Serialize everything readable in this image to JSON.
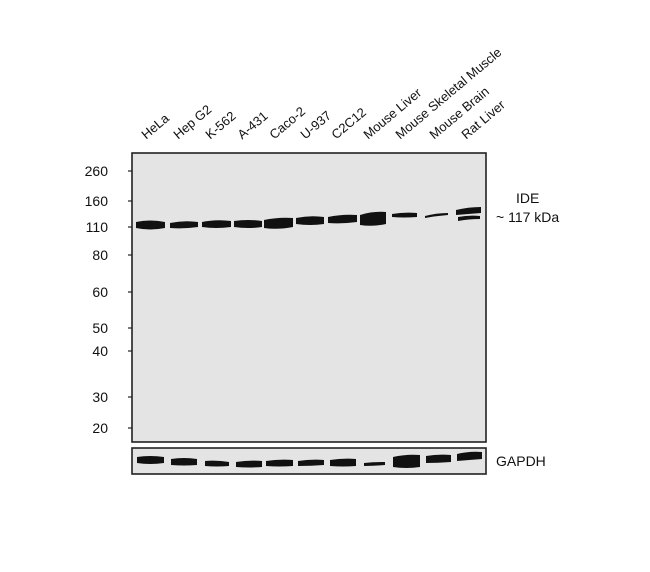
{
  "lanes": [
    "HeLa",
    "Hep G2",
    "K-562",
    "A-431",
    "Caco-2",
    "U-937",
    "C2C12",
    "Mouse Liver",
    "Mouse Skeletal Muscle",
    "Mouse Brain",
    "Rat Liver"
  ],
  "markers": [
    "260",
    "160",
    "110",
    "80",
    "60",
    "50",
    "40",
    "30",
    "20"
  ],
  "target": {
    "name": "IDE",
    "size": "~ 117 kDa"
  },
  "loading_control": "GAPDH",
  "colors": {
    "membrane": "#e4e4e4",
    "band": "#111111",
    "frame": "#222222"
  }
}
